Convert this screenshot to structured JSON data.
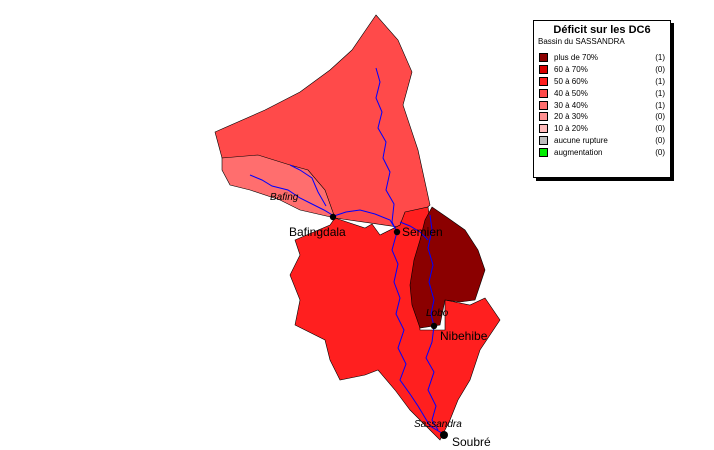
{
  "legend": {
    "title": "Déficit sur les DC6",
    "subtitle": "Bassin du SASSANDRA",
    "items": [
      {
        "label": "plus de 70%",
        "count": "(1)",
        "color": "#8b0000"
      },
      {
        "label": "60  à 70%",
        "count": "(0)",
        "color": "#d80000"
      },
      {
        "label": "50  à 60%",
        "count": "(1)",
        "color": "#ff1f1f"
      },
      {
        "label": "40  à 50%",
        "count": "(1)",
        "color": "#ff4a4a"
      },
      {
        "label": "30  à 40%",
        "count": "(1)",
        "color": "#ff6e6e"
      },
      {
        "label": "20  à 30%",
        "count": "(0)",
        "color": "#ff9090"
      },
      {
        "label": "10  à 20%",
        "count": "(0)",
        "color": "#ffbaba"
      },
      {
        "label": "aucune rupture",
        "count": "(0)",
        "color": "#bdbdbd"
      },
      {
        "label": "augmentation",
        "count": "(0)",
        "color": "#00ee00"
      }
    ]
  },
  "stations": {
    "bafingdala": "Bafingdala",
    "semien": "Semien",
    "nibehibe": "Nibehibe",
    "soubre": "Soubré"
  },
  "rivers": {
    "bafing": "Bafing",
    "lobo": "Lobo",
    "sassandra": "Sassandra"
  },
  "colors": {
    "river": "#0000ff",
    "border": "#000000"
  }
}
